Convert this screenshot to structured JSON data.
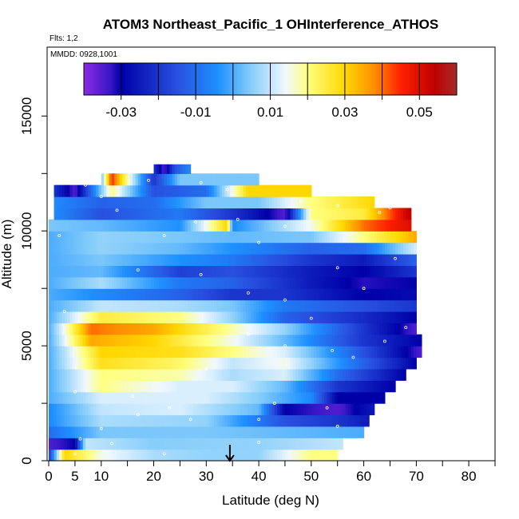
{
  "chart_data": {
    "type": "heatmap",
    "title": "ATOM3 Northeast_Pacific_1 OHInterference_ATHOS",
    "flights_note": "Flts: 1,2",
    "date_note": "MMDD: 0928,1001",
    "xlabel": "Latitude (deg N)",
    "ylabel": "Altitude (m)",
    "xlim": [
      0,
      85
    ],
    "ylim": [
      0,
      18000
    ],
    "x_ticks": [
      0,
      5,
      10,
      20,
      30,
      40,
      50,
      60,
      70,
      80
    ],
    "x_minor_ticks": [
      15,
      25,
      35,
      45,
      55,
      65,
      75,
      85
    ],
    "y_ticks": [
      0,
      5000,
      10000,
      15000
    ],
    "colorbar": {
      "ticks": [
        -0.03,
        -0.01,
        0.01,
        0.03,
        0.05
      ],
      "tick_labels": [
        "-0.03",
        "-0.01",
        "0.01",
        "0.03",
        "0.05"
      ],
      "range": [
        -0.04,
        0.06
      ],
      "colors": [
        "#8a2be2",
        "#0000a8",
        "#1e3cdc",
        "#1e90ff",
        "#87cefa",
        "#f0f8ff",
        "#ffff80",
        "#ffd700",
        "#ff8c00",
        "#ff0000",
        "#c00000",
        "#a52a2a"
      ]
    },
    "arrow_latitude": 34.5,
    "layers": [
      {
        "alt_range": [
          0,
          500
        ],
        "x_range": [
          0,
          55
        ],
        "profile": [
          [
            0,
            -0.02
          ],
          [
            3,
            0.03
          ],
          [
            10,
            0.015
          ],
          [
            20,
            0.008
          ],
          [
            30,
            0.006
          ],
          [
            40,
            0.006
          ],
          [
            50,
            0.02
          ],
          [
            55,
            0.02
          ]
        ]
      },
      {
        "alt_range": [
          500,
          1000
        ],
        "x_range": [
          0,
          56
        ],
        "profile": [
          [
            0,
            -0.035
          ],
          [
            5,
            -0.03
          ],
          [
            7,
            0.01
          ],
          [
            20,
            0.005
          ],
          [
            40,
            0.006
          ],
          [
            56,
            0.01
          ]
        ]
      },
      {
        "alt_range": [
          1000,
          1500
        ],
        "x_range": [
          0,
          60
        ],
        "profile": [
          [
            0,
            -0.01
          ],
          [
            10,
            0.004
          ],
          [
            30,
            0.004
          ],
          [
            45,
            0.002
          ],
          [
            60,
            0.0
          ]
        ]
      },
      {
        "alt_range": [
          1500,
          2000
        ],
        "x_range": [
          0,
          61
        ],
        "profile": [
          [
            0,
            -0.005
          ],
          [
            10,
            0.008
          ],
          [
            30,
            0.006
          ],
          [
            45,
            -0.015
          ],
          [
            55,
            -0.02
          ],
          [
            61,
            -0.025
          ]
        ]
      },
      {
        "alt_range": [
          2000,
          2500
        ],
        "x_range": [
          0,
          62
        ],
        "profile": [
          [
            0,
            -0.005
          ],
          [
            10,
            0.01
          ],
          [
            25,
            0.012
          ],
          [
            40,
            0.002
          ],
          [
            45,
            -0.03
          ],
          [
            55,
            -0.035
          ],
          [
            62,
            -0.025
          ]
        ]
      },
      {
        "alt_range": [
          2500,
          3000
        ],
        "x_range": [
          0,
          64
        ],
        "profile": [
          [
            0,
            0.0
          ],
          [
            10,
            0.012
          ],
          [
            30,
            0.012
          ],
          [
            40,
            0.005
          ],
          [
            50,
            -0.005
          ],
          [
            55,
            -0.03
          ],
          [
            64,
            -0.03
          ]
        ]
      },
      {
        "alt_range": [
          3000,
          3500
        ],
        "x_range": [
          0,
          66
        ],
        "profile": [
          [
            0,
            0.0
          ],
          [
            10,
            0.02
          ],
          [
            25,
            0.012
          ],
          [
            35,
            0.012
          ],
          [
            45,
            0.002
          ],
          [
            55,
            -0.02
          ],
          [
            66,
            -0.03
          ]
        ]
      },
      {
        "alt_range": [
          3500,
          4000
        ],
        "x_range": [
          0,
          68
        ],
        "profile": [
          [
            0,
            0.0
          ],
          [
            10,
            0.02
          ],
          [
            25,
            0.018
          ],
          [
            35,
            0.008
          ],
          [
            45,
            0.012
          ],
          [
            55,
            -0.01
          ],
          [
            68,
            -0.03
          ]
        ]
      },
      {
        "alt_range": [
          4000,
          4500
        ],
        "x_range": [
          0,
          70
        ],
        "profile": [
          [
            0,
            0.0
          ],
          [
            10,
            0.028
          ],
          [
            25,
            0.022
          ],
          [
            35,
            0.01
          ],
          [
            45,
            0.015
          ],
          [
            60,
            -0.012
          ],
          [
            70,
            -0.03
          ]
        ]
      },
      {
        "alt_range": [
          4500,
          5000
        ],
        "x_range": [
          0,
          71
        ],
        "profile": [
          [
            0,
            0.0
          ],
          [
            10,
            0.03
          ],
          [
            25,
            0.028
          ],
          [
            35,
            0.02
          ],
          [
            45,
            0.012
          ],
          [
            60,
            -0.015
          ],
          [
            71,
            -0.035
          ]
        ]
      },
      {
        "alt_range": [
          5000,
          5500
        ],
        "x_range": [
          0,
          71
        ],
        "profile": [
          [
            0,
            0.0
          ],
          [
            8,
            0.035
          ],
          [
            20,
            0.03
          ],
          [
            35,
            0.015
          ],
          [
            45,
            0.002
          ],
          [
            60,
            -0.02
          ],
          [
            71,
            -0.03
          ]
        ]
      },
      {
        "alt_range": [
          5500,
          6000
        ],
        "x_range": [
          0,
          70
        ],
        "profile": [
          [
            0,
            0.0
          ],
          [
            8,
            0.04
          ],
          [
            20,
            0.035
          ],
          [
            35,
            0.018
          ],
          [
            45,
            0.006
          ],
          [
            60,
            -0.02
          ],
          [
            70,
            -0.035
          ]
        ]
      },
      {
        "alt_range": [
          6000,
          6500
        ],
        "x_range": [
          0,
          70
        ],
        "profile": [
          [
            0,
            0.0
          ],
          [
            10,
            0.025
          ],
          [
            25,
            0.02
          ],
          [
            35,
            0.006
          ],
          [
            45,
            -0.012
          ],
          [
            60,
            -0.022
          ],
          [
            70,
            -0.03
          ]
        ]
      },
      {
        "alt_range": [
          6500,
          7000
        ],
        "x_range": [
          0,
          70
        ],
        "profile": [
          [
            0,
            0.0
          ],
          [
            10,
            0.01
          ],
          [
            25,
            0.008
          ],
          [
            35,
            0.004
          ],
          [
            45,
            -0.008
          ],
          [
            60,
            -0.015
          ],
          [
            70,
            -0.02
          ]
        ]
      },
      {
        "alt_range": [
          7000,
          7500
        ],
        "x_range": [
          0,
          70
        ],
        "profile": [
          [
            0,
            0.0
          ],
          [
            10,
            -0.005
          ],
          [
            25,
            -0.012
          ],
          [
            35,
            -0.02
          ],
          [
            45,
            -0.02
          ],
          [
            60,
            -0.03
          ],
          [
            70,
            -0.028
          ]
        ]
      },
      {
        "alt_range": [
          7500,
          8000
        ],
        "x_range": [
          0,
          70
        ],
        "profile": [
          [
            0,
            0.0
          ],
          [
            10,
            0.008
          ],
          [
            25,
            -0.008
          ],
          [
            35,
            -0.012
          ],
          [
            50,
            -0.025
          ],
          [
            60,
            -0.032
          ],
          [
            70,
            -0.03
          ]
        ]
      },
      {
        "alt_range": [
          8000,
          8500
        ],
        "x_range": [
          0,
          70
        ],
        "profile": [
          [
            0,
            0.0
          ],
          [
            10,
            0.002
          ],
          [
            25,
            -0.018
          ],
          [
            35,
            -0.015
          ],
          [
            50,
            -0.025
          ],
          [
            60,
            -0.03
          ],
          [
            70,
            -0.02
          ]
        ]
      },
      {
        "alt_range": [
          8500,
          9000
        ],
        "x_range": [
          0,
          70
        ],
        "profile": [
          [
            0,
            0.0
          ],
          [
            10,
            0.004
          ],
          [
            25,
            -0.004
          ],
          [
            35,
            -0.008
          ],
          [
            50,
            -0.02
          ],
          [
            60,
            -0.025
          ],
          [
            70,
            -0.012
          ]
        ]
      },
      {
        "alt_range": [
          9000,
          9500
        ],
        "x_range": [
          0,
          70
        ],
        "profile": [
          [
            0,
            0.0
          ],
          [
            10,
            0.006
          ],
          [
            25,
            0.002
          ],
          [
            35,
            -0.004
          ],
          [
            50,
            -0.012
          ],
          [
            60,
            -0.01
          ],
          [
            70,
            0.012
          ]
        ]
      },
      {
        "alt_range": [
          9500,
          10000
        ],
        "x_range": [
          0,
          70
        ],
        "profile": [
          [
            0,
            0.0
          ],
          [
            10,
            0.006
          ],
          [
            25,
            0.004
          ],
          [
            35,
            0.002
          ],
          [
            50,
            0.004
          ],
          [
            60,
            0.02
          ],
          [
            70,
            0.035
          ]
        ]
      },
      {
        "alt_range": [
          10000,
          10500
        ],
        "x_range": [
          0,
          69
        ],
        "profile": [
          [
            0,
            0.004
          ],
          [
            10,
            0.002
          ],
          [
            25,
            -0.004
          ],
          [
            34,
            0.03
          ],
          [
            35,
            -0.005
          ],
          [
            50,
            0.015
          ],
          [
            60,
            0.04
          ],
          [
            69,
            0.05
          ]
        ]
      },
      {
        "alt_range": [
          10500,
          11000
        ],
        "x_range": [
          1,
          69
        ],
        "profile": [
          [
            1,
            -0.005
          ],
          [
            10,
            -0.015
          ],
          [
            25,
            -0.008
          ],
          [
            35,
            -0.02
          ],
          [
            45,
            -0.035
          ],
          [
            50,
            0.02
          ],
          [
            60,
            0.025
          ],
          [
            69,
            0.055
          ]
        ]
      },
      {
        "alt_range": [
          11000,
          11500
        ],
        "x_range": [
          1,
          62
        ],
        "profile": [
          [
            1,
            -0.005
          ],
          [
            10,
            -0.012
          ],
          [
            20,
            -0.01
          ],
          [
            30,
            0.004
          ],
          [
            40,
            0.004
          ],
          [
            50,
            0.02
          ],
          [
            62,
            0.03
          ]
        ]
      },
      {
        "alt_range": [
          11500,
          12000
        ],
        "x_range": [
          1,
          50
        ],
        "profile": [
          [
            1,
            -0.02
          ],
          [
            5,
            -0.035
          ],
          [
            12,
            0.02
          ],
          [
            20,
            -0.015
          ],
          [
            30,
            -0.01
          ],
          [
            38,
            0.03
          ],
          [
            50,
            0.03
          ]
        ]
      },
      {
        "alt_range": [
          12000,
          12500
        ],
        "x_range": [
          10,
          40
        ],
        "profile": [
          [
            10,
            0.002
          ],
          [
            12,
            0.045
          ],
          [
            16,
            0.01
          ],
          [
            20,
            -0.02
          ],
          [
            25,
            0.004
          ],
          [
            32,
            0.004
          ],
          [
            40,
            0.004
          ]
        ]
      },
      {
        "alt_range": [
          12500,
          12900
        ],
        "x_range": [
          20,
          27
        ],
        "profile": [
          [
            20,
            -0.02
          ],
          [
            22,
            -0.035
          ],
          [
            24,
            -0.015
          ],
          [
            27,
            -0.005
          ]
        ]
      }
    ],
    "markers": [
      [
        5,
        300
      ],
      [
        6,
        950
      ],
      [
        12,
        750
      ],
      [
        10,
        1400
      ],
      [
        17,
        2000
      ],
      [
        16,
        2800
      ],
      [
        27,
        1800
      ],
      [
        23,
        2300
      ],
      [
        43,
        2500
      ],
      [
        53,
        2300
      ],
      [
        55,
        1500
      ],
      [
        40,
        1800
      ],
      [
        30,
        4000
      ],
      [
        38,
        5500
      ],
      [
        45,
        5000
      ],
      [
        54,
        4800
      ],
      [
        58,
        4500
      ],
      [
        64,
        5200
      ],
      [
        68,
        5800
      ],
      [
        50,
        6200
      ],
      [
        45,
        7000
      ],
      [
        38,
        7300
      ],
      [
        29,
        8100
      ],
      [
        55,
        8400
      ],
      [
        60,
        7500
      ],
      [
        66,
        8800
      ],
      [
        45,
        10200
      ],
      [
        36,
        10500
      ],
      [
        40,
        9500
      ],
      [
        17,
        8300
      ],
      [
        22,
        9800
      ],
      [
        28,
        10400
      ],
      [
        13,
        10900
      ],
      [
        10,
        11500
      ],
      [
        7,
        12000
      ],
      [
        19,
        12200
      ],
      [
        29,
        12100
      ],
      [
        34,
        11800
      ],
      [
        48,
        11300
      ],
      [
        55,
        11100
      ],
      [
        63,
        10800
      ],
      [
        65,
        11000
      ],
      [
        2,
        9800
      ],
      [
        3,
        6500
      ],
      [
        5,
        3000
      ],
      [
        40,
        800
      ],
      [
        35,
        200
      ],
      [
        22,
        300
      ]
    ]
  }
}
